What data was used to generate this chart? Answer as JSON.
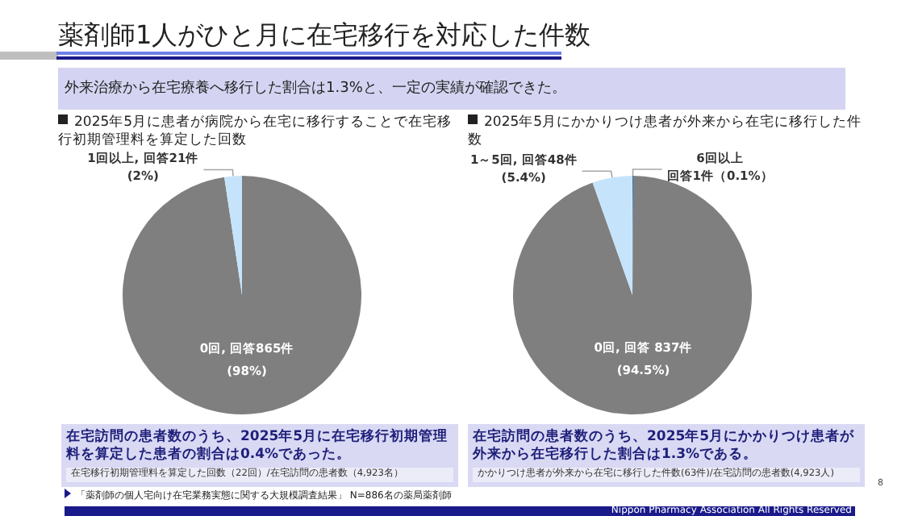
{
  "chart_data": [
    {
      "type": "pie",
      "title": "2025年5月に患者が病院から在宅に移行することで在宅移行初期管理料を算定した回数",
      "categories": [
        "0回",
        "1回以上"
      ],
      "values": [
        865,
        21
      ],
      "colors": [
        "#7f7f7f",
        "#c5e4fb"
      ],
      "value_labels": [
        "回答865件\n(98%)",
        "回答21件\n(2%)"
      ],
      "annotations": [
        "薬剤師1人がひと月に在宅移行を対応した件数",
        "外来治療から在宅療養へ移行した割合は1.3%と、一定の実績が確認できた。",
        "在宅訪問の患者数のうち、2025年5月に在宅移行初期管理料を算定した患者の割合は0.4%であった。",
        "在宅移行初期管理料を算定した回数（22回）/在宅訪問の患者数（4,923名）",
        "「薬剤師の個人宅向け在宅業務実態に関する大規模調査結果」 N=886名の薬局薬剤師",
        "Nippon Pharmacy Association All Rights Reserved",
        "8"
      ]
    },
    {
      "type": "pie",
      "title": "2025年5月にかかりつけ患者が外来から在宅に移行した件数",
      "categories": [
        "6回以上",
        "0回",
        "1～5回"
      ],
      "values": [
        1,
        837,
        48
      ],
      "colors": [
        "#2e75b6",
        "#7f7f7f",
        "#c5e4fb"
      ],
      "value_labels": [
        "\n回答1件（0.1%）",
        "回答 837件\n(94.5%)",
        "回答48件\n(5.4%)"
      ],
      "annotations": [
        "在宅訪問の患者数のうち、2025年5月にかかりつけ患者が外来から在宅移行した割合は1.3%である。",
        "かかりつけ患者が外来から在宅に移行した件数(63件)/在宅訪問の患者数(4,923人)"
      ]
    }
  ]
}
